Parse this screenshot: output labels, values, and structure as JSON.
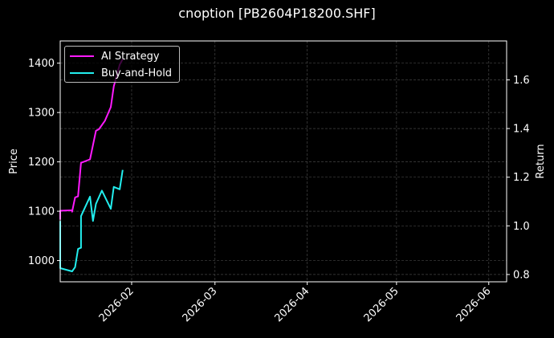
{
  "title": "cnoption [PB2604P18200.SHF]",
  "chart_data": {
    "type": "line",
    "title": "cnoption [PB2604P18200.SHF]",
    "xlabel": "",
    "ylabel": "Price",
    "ylabel_right": "Return",
    "x_ticks": [
      "2026-02",
      "2026-03",
      "2026-04",
      "2026-05",
      "2026-06"
    ],
    "y_ticks_left": [
      "1000",
      "1100",
      "1200",
      "1300",
      "1400"
    ],
    "y_ticks_right": [
      "0.8",
      "1.0",
      "1.2",
      "1.4",
      "1.6"
    ],
    "ylim_left": [
      957,
      1445
    ],
    "ylim_right": [
      0.77,
      1.76
    ],
    "xlim": [
      "2026-01-08",
      "2026-06-07"
    ],
    "grid": true,
    "legend_position": "upper left",
    "series": [
      {
        "name": "AI Strategy",
        "axis": "left",
        "color": "#ff1aff",
        "x": [
          "2026-01-08",
          "2026-01-08",
          "2026-01-12",
          "2026-01-12",
          "2026-01-13",
          "2026-01-14",
          "2026-01-15",
          "2026-01-18",
          "2026-01-20",
          "2026-01-21",
          "2026-01-23",
          "2026-01-25",
          "2026-01-26",
          "2026-01-28",
          "2026-01-29"
        ],
        "values": [
          1083,
          1101,
          1102,
          1099,
          1128,
          1130,
          1198,
          1205,
          1263,
          1266,
          1283,
          1311,
          1353,
          1397,
          1408
        ]
      },
      {
        "name": "Buy-and-Hold",
        "axis": "right",
        "color": "#22eeee",
        "x": [
          "2026-01-08",
          "2026-01-08",
          "2026-01-12",
          "2026-01-13",
          "2026-01-14",
          "2026-01-15",
          "2026-01-15",
          "2026-01-18",
          "2026-01-19",
          "2026-01-20",
          "2026-01-22",
          "2026-01-25",
          "2026-01-26",
          "2026-01-28",
          "2026-01-29"
        ],
        "values": [
          1.02,
          0.826,
          0.813,
          0.83,
          0.905,
          0.91,
          1.04,
          1.12,
          1.02,
          1.09,
          1.145,
          1.07,
          1.16,
          1.15,
          1.23
        ]
      }
    ]
  },
  "colors": {
    "background": "#000000",
    "ai_strategy": "#ff1aff",
    "buy_and_hold": "#22eeee",
    "axis": "#ffffff",
    "grid": "#444444"
  }
}
